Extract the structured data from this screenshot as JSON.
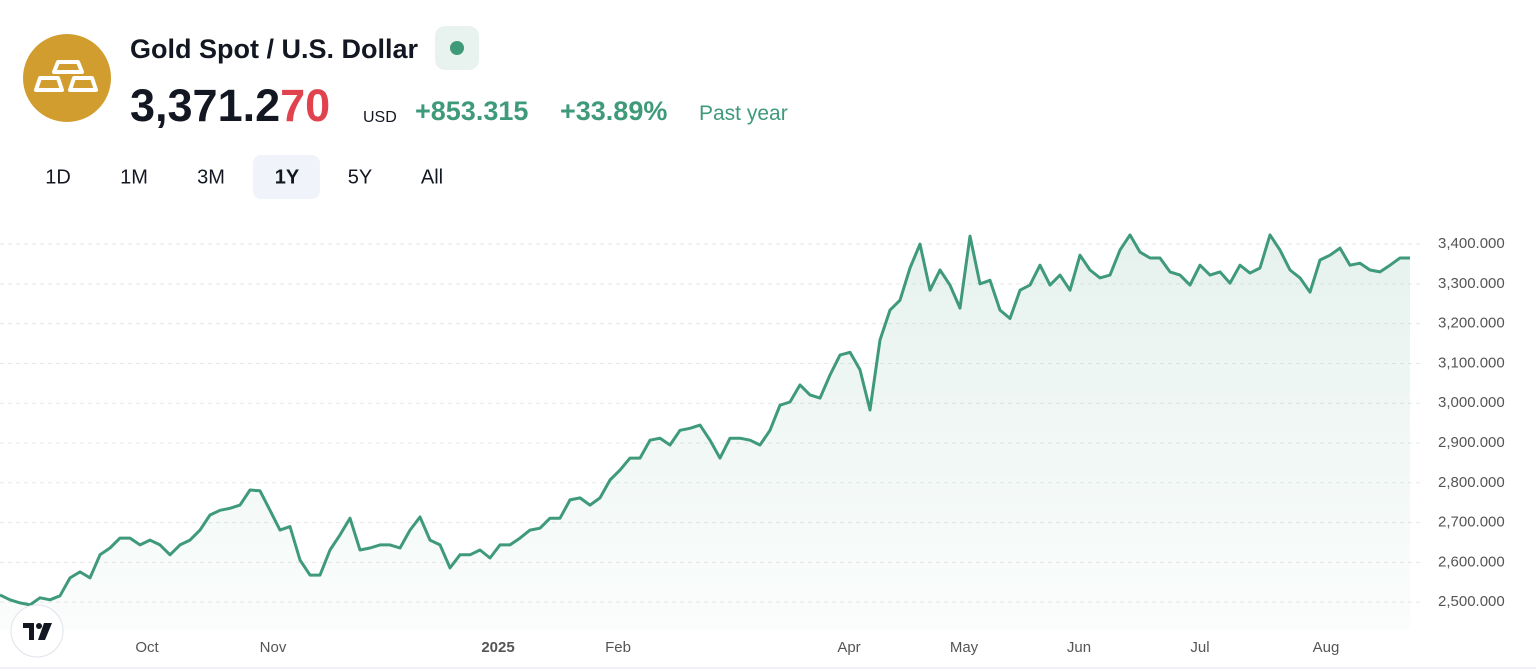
{
  "header": {
    "title": "Gold Spot / U.S. Dollar",
    "price_main": "3,371.2",
    "price_tail": "70",
    "currency": "USD",
    "change": "+853.315",
    "change_percent": "+33.89%",
    "period": "Past year"
  },
  "tabs": {
    "items": [
      "1D",
      "1M",
      "3M",
      "1Y",
      "5Y",
      "All"
    ],
    "active": 3
  },
  "chart_data": {
    "type": "line",
    "color": "#3f9a7a",
    "grid": true,
    "values": [
      2518,
      2506,
      2498,
      2493,
      2511,
      2506,
      2516,
      2561,
      2576,
      2561,
      2619,
      2636,
      2661,
      2661,
      2644,
      2656,
      2644,
      2619,
      2644,
      2656,
      2681,
      2719,
      2731,
      2736,
      2744,
      2782,
      2780,
      2731,
      2681,
      2690,
      2606,
      2568,
      2568,
      2631,
      2669,
      2711,
      2631,
      2636,
      2644,
      2644,
      2636,
      2681,
      2714,
      2656,
      2644,
      2586,
      2619,
      2619,
      2631,
      2611,
      2644,
      2644,
      2661,
      2681,
      2686,
      2711,
      2711,
      2757,
      2762,
      2744,
      2762,
      2807,
      2832,
      2862,
      2862,
      2907,
      2912,
      2895,
      2932,
      2937,
      2945,
      2907,
      2862,
      2912,
      2912,
      2907,
      2895,
      2932,
      2995,
      3003,
      3046,
      3021,
      3013,
      3071,
      3121,
      3128,
      3084,
      2983,
      3159,
      3234,
      3259,
      3340,
      3400,
      3284,
      3335,
      3297,
      3239,
      3420,
      3300,
      3309,
      3234,
      3213,
      3284,
      3297,
      3347,
      3297,
      3322,
      3284,
      3372,
      3335,
      3315,
      3322,
      3385,
      3423,
      3380,
      3365,
      3365,
      3330,
      3322,
      3297,
      3347,
      3322,
      3330,
      3302,
      3347,
      3327,
      3340,
      3423,
      3385,
      3335,
      3315,
      3279,
      3360,
      3372,
      3390,
      3347,
      3352,
      3335,
      3330,
      3347,
      3365,
      3365
    ],
    "xlim": [
      0,
      141.4
    ],
    "xticks": [
      {
        "value": 14.7,
        "label": "Oct"
      },
      {
        "value": 27.3,
        "label": "Nov"
      },
      {
        "value": 49.8,
        "label": "2025"
      },
      {
        "value": 61.8,
        "label": "Feb"
      },
      {
        "value": 84.9,
        "label": "Apr"
      },
      {
        "value": 96.4,
        "label": "May"
      },
      {
        "value": 107.9,
        "label": "Jun"
      },
      {
        "value": 120,
        "label": "Jul"
      },
      {
        "value": 132.6,
        "label": "Aug"
      }
    ],
    "ylim": [
      2430,
      3448
    ],
    "yticks": [
      {
        "value": 2500,
        "label": "2,500.000"
      },
      {
        "value": 2600,
        "label": "2,600.000"
      },
      {
        "value": 2700,
        "label": "2,700.000"
      },
      {
        "value": 2800,
        "label": "2,800.000"
      },
      {
        "value": 2900,
        "label": "2,900.000"
      },
      {
        "value": 3000,
        "label": "3,000.000"
      },
      {
        "value": 3100,
        "label": "3,100.000"
      },
      {
        "value": 3200,
        "label": "3,200.000"
      },
      {
        "value": 3300,
        "label": "3,300.000"
      },
      {
        "value": 3400,
        "label": "3,400.000"
      }
    ]
  }
}
